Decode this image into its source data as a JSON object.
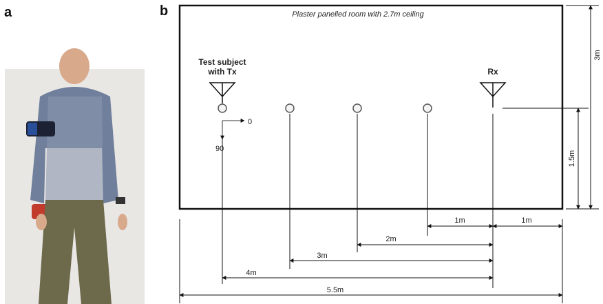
{
  "panel_a": {
    "label": "a"
  },
  "panel_b": {
    "label": "b",
    "room": "Plaster panelled room with 2.7m ceiling",
    "subject": {
      "line1": "Test subject",
      "line2": "with Tx"
    },
    "receiver": "Rx",
    "orientations": [
      "0",
      "90"
    ],
    "room_depth": "3m",
    "antenna_offset": "1.5m",
    "distances": [
      "1m",
      "1m",
      "2m",
      "3m",
      "4m",
      "5.5m"
    ]
  }
}
